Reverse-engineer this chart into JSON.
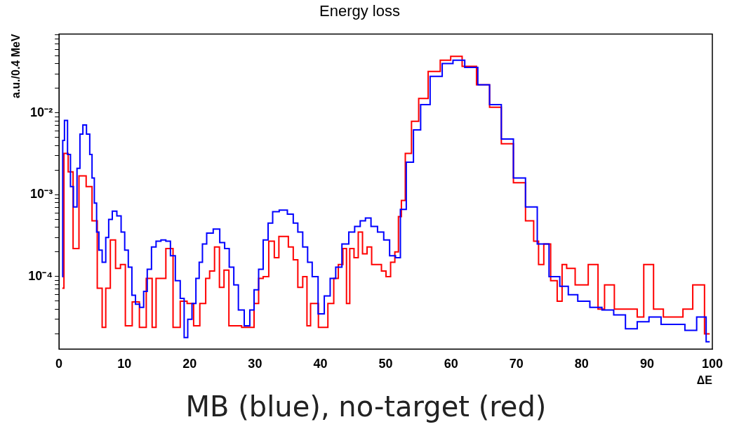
{
  "chart_data": {
    "type": "step",
    "title": "Energy loss",
    "xlabel": "ΔE",
    "ylabel": "a.u./0.4 MeV",
    "annotations": [
      "MB (blue), no-target (red)"
    ],
    "log": "y",
    "grid": false,
    "legend": false,
    "marker": "none",
    "line_style": "solid",
    "xlim": [
      0,
      100
    ],
    "xticks": [
      0,
      10,
      20,
      30,
      40,
      50,
      60,
      70,
      80,
      90,
      100
    ],
    "ylim": [
      1.3e-05,
      0.092
    ],
    "yticks": [
      {
        "value": 2e-05,
        "label": null
      },
      {
        "value": 3e-05,
        "label": null
      },
      {
        "value": 4e-05,
        "label": null
      },
      {
        "value": 5e-05,
        "label": null
      },
      {
        "value": 6e-05,
        "label": null
      },
      {
        "value": 7e-05,
        "label": null
      },
      {
        "value": 8e-05,
        "label": null
      },
      {
        "value": 9e-05,
        "label": null
      },
      {
        "value": 0.0001,
        "label": "10⁻⁴"
      },
      {
        "value": 0.0002,
        "label": null
      },
      {
        "value": 0.0003,
        "label": null
      },
      {
        "value": 0.0004,
        "label": null
      },
      {
        "value": 0.0005,
        "label": null
      },
      {
        "value": 0.0006,
        "label": null
      },
      {
        "value": 0.0007,
        "label": null
      },
      {
        "value": 0.0008,
        "label": null
      },
      {
        "value": 0.0009,
        "label": null
      },
      {
        "value": 0.001,
        "label": "10⁻³"
      },
      {
        "value": 0.002,
        "label": null
      },
      {
        "value": 0.003,
        "label": null
      },
      {
        "value": 0.004,
        "label": null
      },
      {
        "value": 0.005,
        "label": null
      },
      {
        "value": 0.006,
        "label": null
      },
      {
        "value": 0.007,
        "label": null
      },
      {
        "value": 0.008,
        "label": null
      },
      {
        "value": 0.009,
        "label": null
      },
      {
        "value": 0.01,
        "label": "10⁻²"
      },
      {
        "value": 0.02,
        "label": null
      },
      {
        "value": 0.03,
        "label": null
      },
      {
        "value": 0.04,
        "label": null
      },
      {
        "value": 0.05,
        "label": null
      },
      {
        "value": 0.06,
        "label": null
      },
      {
        "value": 0.07,
        "label": null
      },
      {
        "value": 0.08,
        "label": null
      },
      {
        "value": 0.09,
        "label": null
      }
    ],
    "series": [
      {
        "color": "#0000ff",
        "x": [
          0.47,
          0.66,
          1.0,
          1.6,
          1.9,
          2.5,
          3.0,
          3.4,
          3.9,
          4.5,
          4.9,
          5.2,
          5.6,
          5.9,
          6.3,
          6.9,
          7.4,
          7.8,
          8.5,
          9.2,
          9.8,
          10.3,
          10.9,
          11.4,
          12.0,
          12.7,
          13.2,
          13.8,
          14.5,
          15.2,
          16.0,
          16.7,
          17.4,
          18.2,
          18.9,
          19.4,
          20.0,
          20.7,
          21.2,
          21.7,
          22.2,
          23.0,
          24.2,
          25.0,
          25.7,
          26.4,
          27.1,
          27.8,
          28.9,
          29.5,
          30.2,
          30.9,
          31.6,
          32.4,
          33.0,
          34.4,
          35.5,
          36.2,
          36.9,
          37.7,
          38.4,
          39.1,
          40.2,
          41.0,
          42.0,
          42.7,
          43.9,
          44.8,
          45.7,
          46.5,
          47.3,
          48.2,
          49.3,
          50.1,
          51.1,
          51.9,
          52.6,
          53.7,
          54.8,
          55.9,
          57.7,
          59.6,
          61.0,
          63.2,
          65.0,
          66.8,
          68.6,
          70.5,
          72.3,
          74.1,
          75.9,
          77.4,
          78.5,
          80.3,
          82.2,
          84.0,
          85.8,
          87.6,
          89.4,
          91.2,
          93.1,
          94.9,
          96.7,
          98.5,
          99.6
        ],
        "values": [
          0.0001,
          0.0046,
          0.0081,
          0.0031,
          0.00126,
          0.00071,
          0.0021,
          0.0055,
          0.0071,
          0.0055,
          0.0031,
          0.0016,
          0.00079,
          0.00035,
          0.00021,
          0.00015,
          0.0003,
          0.0005,
          0.00063,
          0.00055,
          0.00035,
          0.00021,
          0.00013,
          5.9e-05,
          4.6e-05,
          4.2e-05,
          6.6e-05,
          0.000123,
          0.00023,
          0.00027,
          0.00028,
          0.00027,
          0.00018,
          8.9e-05,
          5.4e-05,
          1.8e-05,
          3e-05,
          4.7e-05,
          9.5e-05,
          0.00015,
          0.00025,
          0.00034,
          0.00038,
          0.00026,
          0.00022,
          0.00013,
          7.9e-05,
          3.9e-05,
          2.5e-05,
          3.9e-05,
          6.9e-05,
          0.000123,
          0.00028,
          0.00045,
          0.00062,
          0.00065,
          0.00058,
          0.00045,
          0.00035,
          0.00023,
          0.00015,
          0.0001,
          3.5e-05,
          5.8e-05,
          9.5e-05,
          0.00013,
          0.00025,
          0.00035,
          0.00041,
          0.00048,
          0.00052,
          0.00041,
          0.00035,
          0.00028,
          0.00018,
          0.00017,
          0.00066,
          0.0025,
          0.0062,
          0.0126,
          0.028,
          0.04,
          0.044,
          0.036,
          0.022,
          0.0126,
          0.0048,
          0.0016,
          0.00071,
          0.00025,
          0.0001,
          7.6e-05,
          6e-05,
          5e-05,
          4.2e-05,
          3.9e-05,
          3.4e-05,
          2.3e-05,
          2.8e-05,
          3.2e-05,
          2.6e-05,
          2.6e-05,
          2.2e-05,
          3.2e-05,
          1.6e-05
        ]
      },
      {
        "color": "#ff0000",
        "x": [
          0.5,
          1.0,
          1.8,
          2.5,
          3.6,
          4.7,
          5.4,
          6.3,
          6.9,
          7.4,
          8.3,
          9.0,
          9.8,
          10.5,
          11.9,
          12.7,
          14.0,
          14.5,
          15.2,
          16.0,
          16.7,
          18.2,
          18.9,
          20.3,
          20.9,
          22.2,
          22.7,
          23.4,
          24.2,
          24.9,
          25.6,
          26.4,
          29.5,
          30.2,
          30.9,
          31.6,
          32.6,
          33.3,
          34.0,
          34.7,
          35.5,
          36.2,
          36.9,
          37.7,
          38.2,
          38.8,
          40.6,
          41.7,
          42.4,
          43.1,
          43.8,
          44.2,
          44.8,
          45.5,
          46.1,
          46.8,
          47.5,
          48.2,
          49.0,
          49.7,
          50.4,
          51.1,
          51.7,
          52.2,
          52.6,
          53.4,
          54.5,
          55.6,
          57.4,
          59.3,
          60.6,
          62.8,
          65.0,
          66.8,
          68.6,
          70.5,
          72.3,
          73.0,
          73.8,
          74.6,
          75.9,
          76.6,
          77.4,
          78,
          80,
          82,
          83,
          84,
          86,
          88,
          89,
          90,
          92,
          93,
          95,
          96,
          98,
          99.6
        ],
        "values": [
          7.2e-05,
          0.0032,
          0.0019,
          0.00022,
          0.0017,
          0.00126,
          0.00048,
          7.2e-05,
          2.4e-05,
          7.2e-05,
          0.00028,
          0.000126,
          0.00014,
          2.5e-05,
          4.9e-05,
          2.4e-05,
          9.5e-05,
          2.4e-05,
          9.5e-05,
          9.5e-05,
          0.00022,
          2.4e-05,
          5e-05,
          4.7e-05,
          2.5e-05,
          4.7e-05,
          9.5e-05,
          0.000117,
          0.00023,
          7.4e-05,
          0.00012,
          2.5e-05,
          2.4e-05,
          4.7e-05,
          9.5e-05,
          0.0001,
          0.00027,
          0.00017,
          0.00031,
          0.00031,
          0.00023,
          0.00016,
          7.4e-05,
          0.0001,
          2.5e-05,
          4.7e-05,
          2.4e-05,
          4.7e-05,
          9.5e-05,
          0.00014,
          0.00022,
          4.7e-05,
          0.00022,
          0.00017,
          0.00035,
          0.00019,
          0.00023,
          0.00014,
          0.00014,
          0.000117,
          0.0001,
          0.00015,
          0.0002,
          0.00054,
          0.00085,
          0.0032,
          0.0079,
          0.015,
          0.032,
          0.044,
          0.049,
          0.037,
          0.022,
          0.0117,
          0.0042,
          0.0014,
          0.00048,
          0.00027,
          0.00014,
          0.00025,
          8.9e-05,
          5e-05,
          0.00014,
          0.000126,
          7.9e-05,
          0.00014,
          4e-05,
          7.9e-05,
          4e-05,
          4e-05,
          3.2e-05,
          0.00014,
          4e-05,
          3.2e-05,
          3.2e-05,
          4e-05,
          7.9e-05,
          2e-05
        ]
      }
    ]
  }
}
